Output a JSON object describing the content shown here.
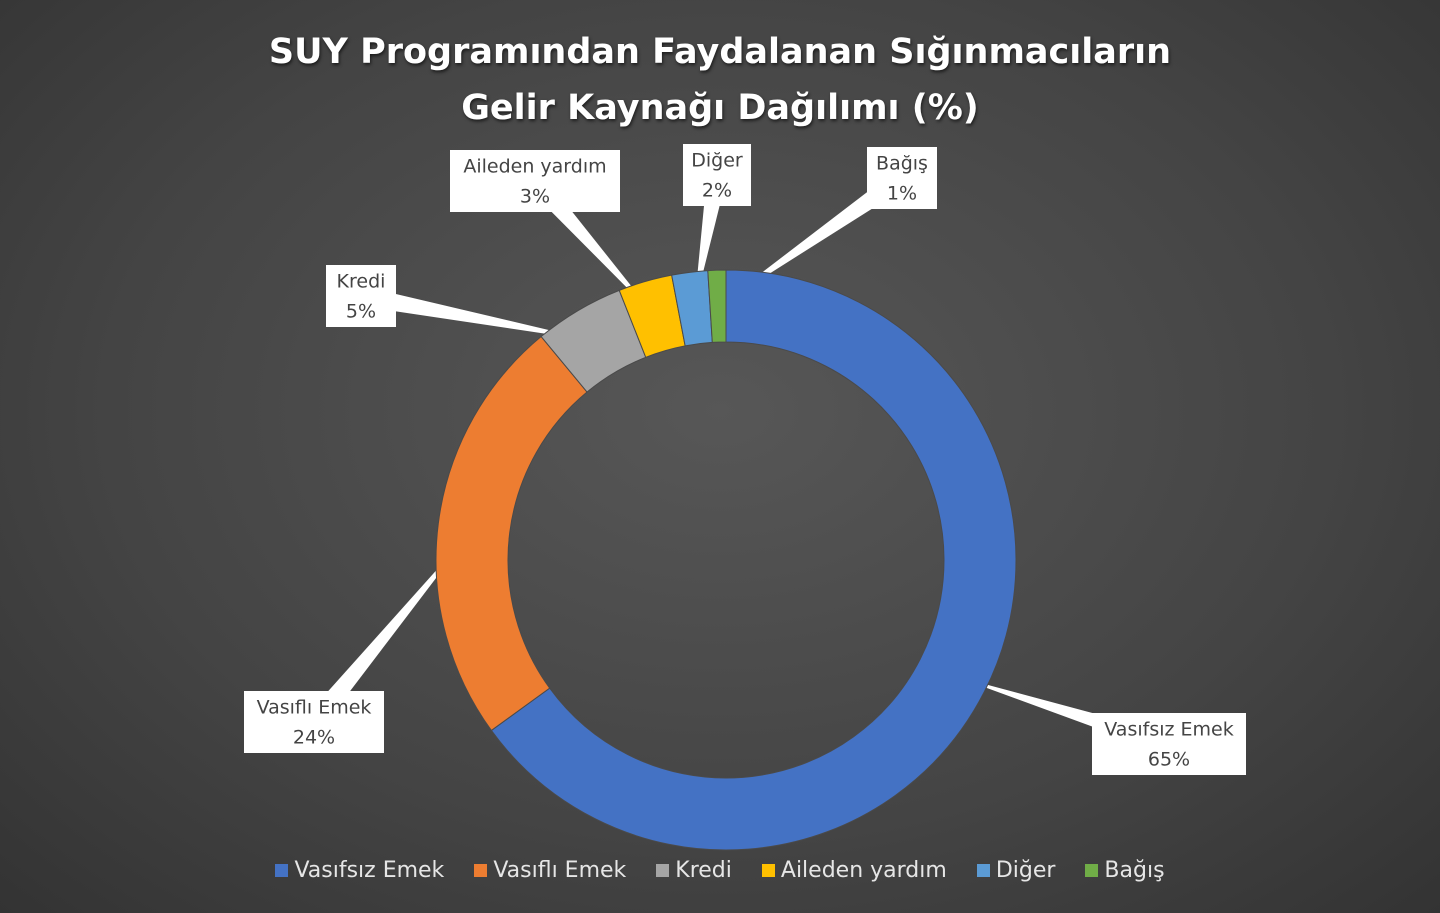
{
  "chart_data": {
    "type": "donut",
    "title": "SUY Programından Faydalanan Sığınmacıların Gelir Kaynağı Dağılımı (%)",
    "categories": [
      "Vasıfsız Emek",
      "Vasıflı Emek",
      "Kredi",
      "Aileden yardım",
      "Diğer",
      "Bağış"
    ],
    "values": [
      65,
      24,
      5,
      3,
      2,
      1
    ],
    "value_labels": [
      "65%",
      "24%",
      "5%",
      "3%",
      "2%",
      "1%"
    ],
    "colors": [
      "#4472c4",
      "#ed7d31",
      "#a5a5a5",
      "#ffc000",
      "#5b9bd5",
      "#70ad47"
    ],
    "legend": "bottom"
  }
}
